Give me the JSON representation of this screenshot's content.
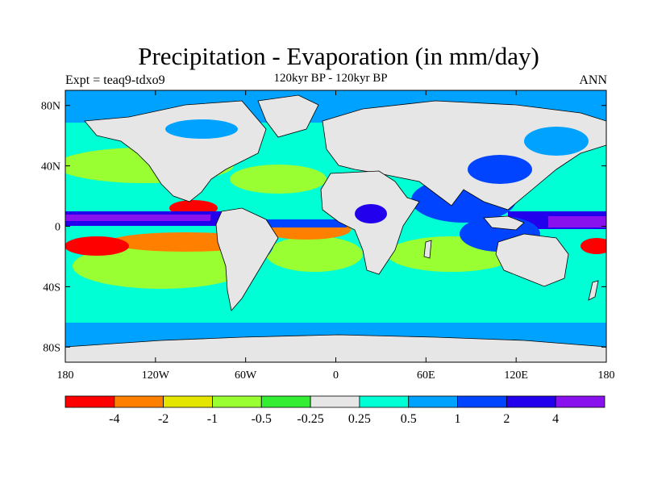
{
  "title": "Precipitation - Evaporation (in mm/day)",
  "subtitle": "120kyr BP - 120kyr BP",
  "left_label": "Expt = teaq9-tdxo9",
  "right_label": "ANN",
  "map": {
    "projection": "cylindrical equidistant",
    "lon_range": [
      -180,
      180
    ],
    "lat_range": [
      -90,
      90
    ],
    "lat_ticks": [
      {
        "value": 80,
        "label": "80N"
      },
      {
        "value": 40,
        "label": "40N"
      },
      {
        "value": 0,
        "label": "0"
      },
      {
        "value": -40,
        "label": "40S"
      },
      {
        "value": -80,
        "label": "80S"
      }
    ],
    "lon_ticks": [
      {
        "value": -180,
        "label": "180"
      },
      {
        "value": -120,
        "label": "120W"
      },
      {
        "value": -60,
        "label": "60W"
      },
      {
        "value": 0,
        "label": "0"
      },
      {
        "value": 60,
        "label": "60E"
      },
      {
        "value": 120,
        "label": "120E"
      },
      {
        "value": 180,
        "label": "180"
      }
    ]
  },
  "colorbar": {
    "colors": [
      "#ff0000",
      "#ff8000",
      "#e5e600",
      "#99ff33",
      "#33ee33",
      "#e6e6e6",
      "#00ffd5",
      "#00a2ff",
      "#0044ff",
      "#2200ee",
      "#8811ee"
    ],
    "boundary_labels": [
      "-4",
      "-2",
      "-1",
      "-0.5",
      "-0.25",
      "0.25",
      "0.5",
      "1",
      "2",
      "4"
    ]
  },
  "colors": {
    "land": "#e6e6e6",
    "coastline": "#000000"
  }
}
